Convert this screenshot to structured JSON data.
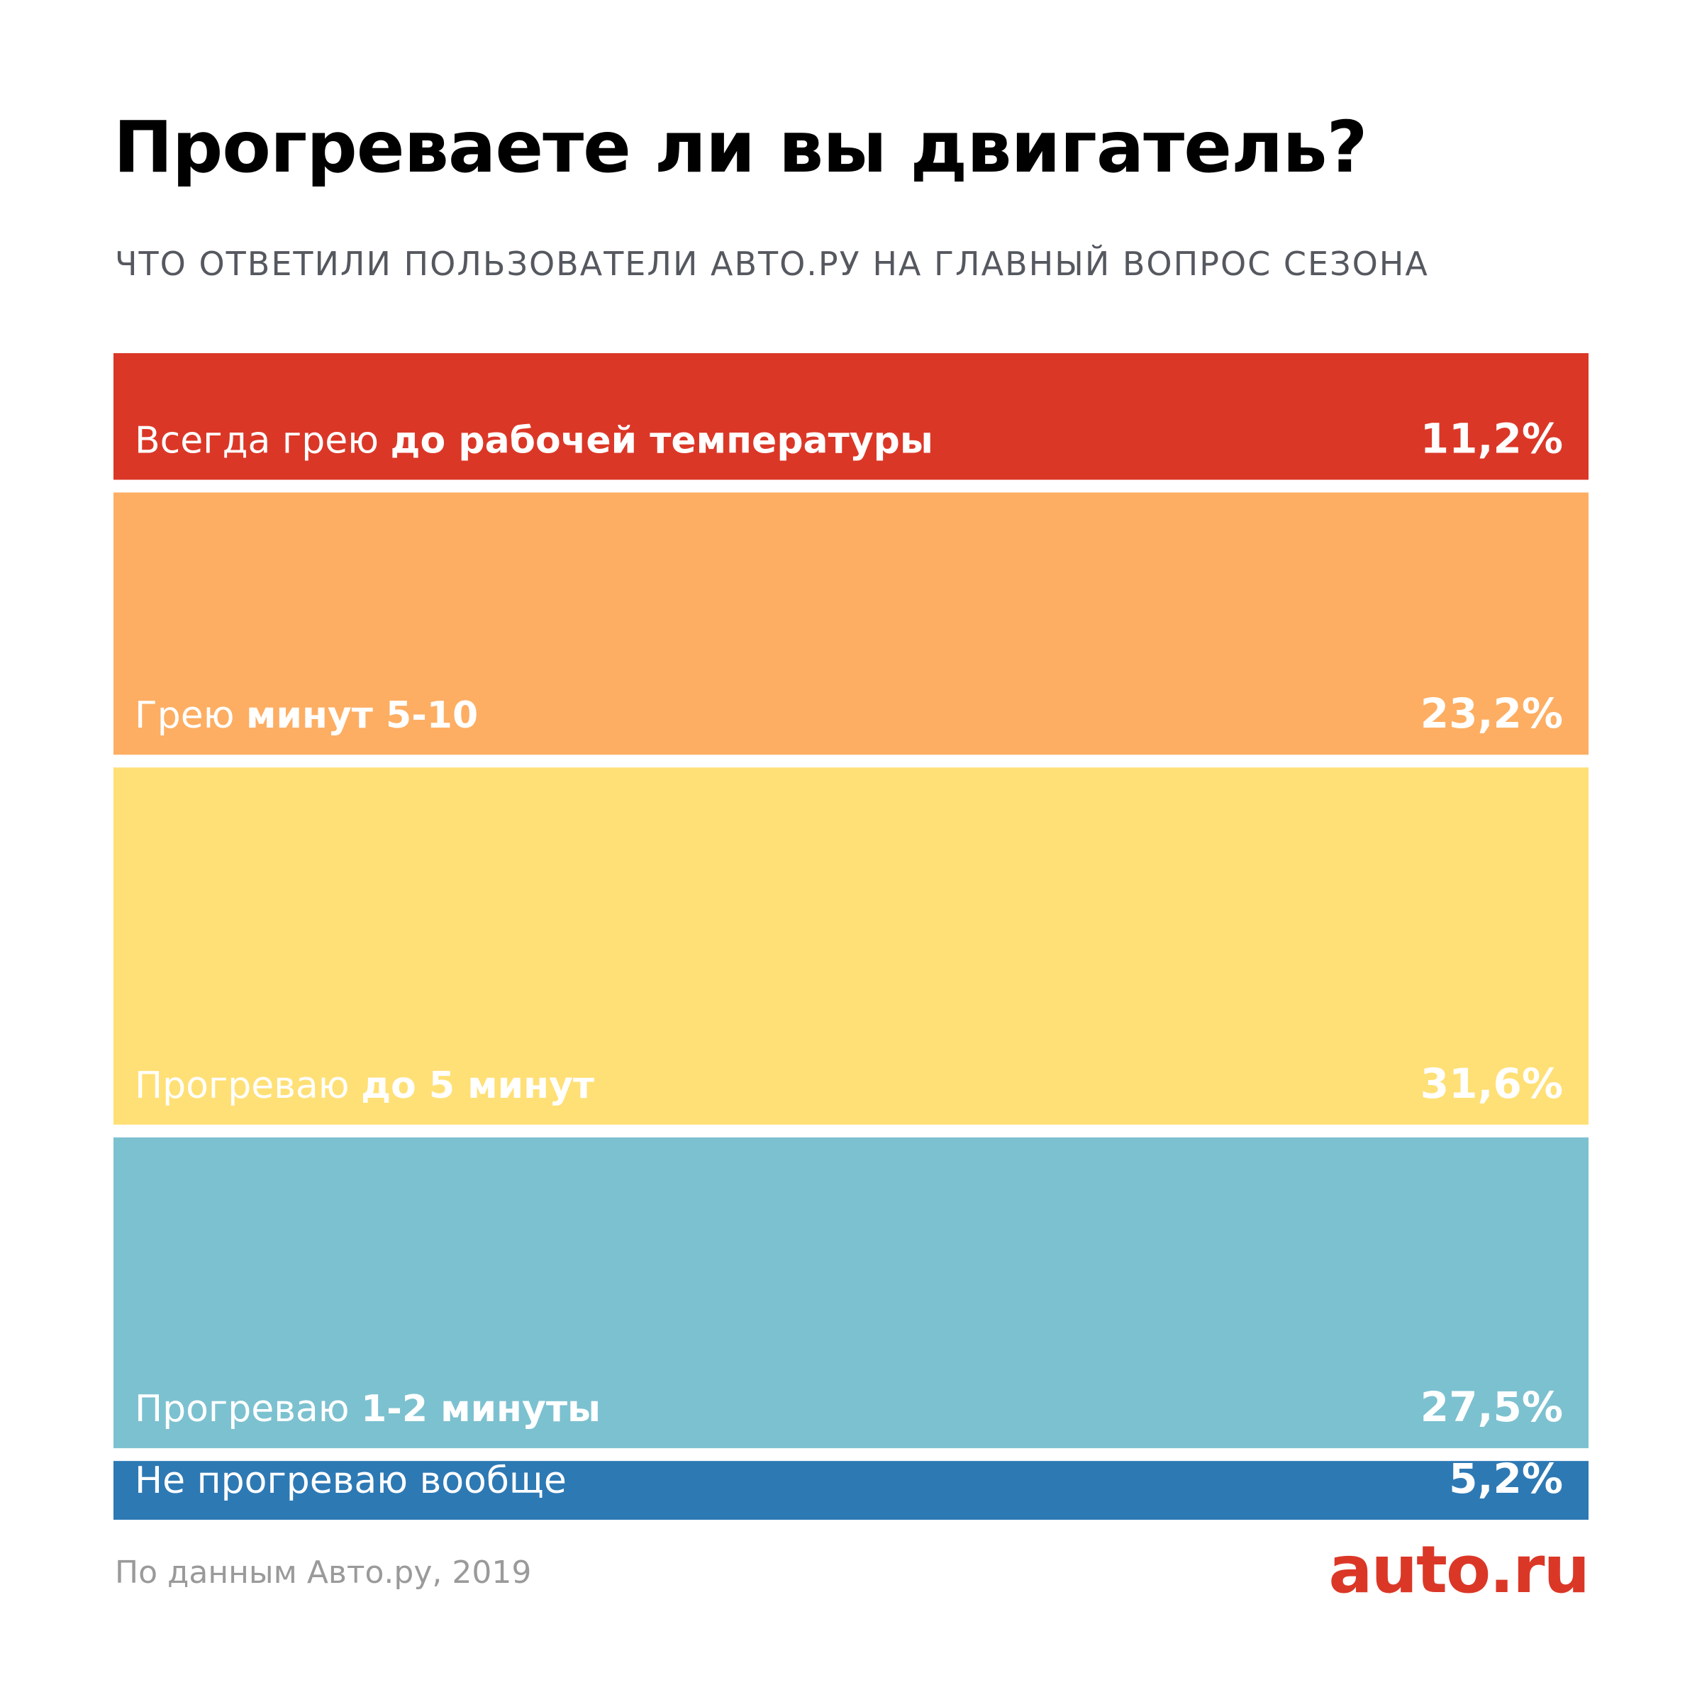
{
  "header": {
    "title": "Прогреваете ли вы двигатель?",
    "subtitle": "ЧТО ОТВЕТИЛИ ПОЛЬЗОВАТЕЛИ АВТО.РУ НА ГЛАВНЫЙ ВОПРОС СЕЗОНА"
  },
  "footer": {
    "source": "По данным Авто.ру, 2019",
    "logo": "auto.ru"
  },
  "colors": {
    "red": "#db3727",
    "orange": "#fdae63",
    "yellow": "#ffe076",
    "teal": "#7cc1d0",
    "blue": "#2d79b4",
    "brand": "#db3727"
  },
  "chart_data": {
    "type": "bar",
    "orientation": "stacked-vertical-100",
    "title": "Прогреваете ли вы двигатель?",
    "subtitle": "ЧТО ОТВЕТИЛИ ПОЛЬЗОВАТЕЛИ АВТО.РУ НА ГЛАВНЫЙ ВОПРОС СЕЗОНА",
    "unit": "%",
    "categories": [
      "Всегда грею до рабочей температуры",
      "Грею минут 5-10",
      "Прогреваю до 5 минут",
      "Прогреваю 1-2 минуты",
      "Не прогреваю вообще"
    ],
    "label_parts": [
      {
        "normal": "Всегда грею ",
        "bold": "до рабочей температуры"
      },
      {
        "normal": "Грею ",
        "bold": "минут 5-10"
      },
      {
        "normal": "Прогреваю ",
        "bold": "до 5 минут"
      },
      {
        "normal": "Прогреваю ",
        "bold": "1-2 минуты"
      },
      {
        "normal": "",
        "bold": "Не прогреваю вообще"
      }
    ],
    "values": [
      11.2,
      23.2,
      31.6,
      27.5,
      5.2
    ],
    "value_labels": [
      "11,2%",
      "23,2%",
      "31,6%",
      "27,5%",
      "5,2%"
    ],
    "colors": [
      "#db3727",
      "#fdae63",
      "#ffe076",
      "#7cc1d0",
      "#2d79b4"
    ],
    "grid": false,
    "legend": "none"
  }
}
